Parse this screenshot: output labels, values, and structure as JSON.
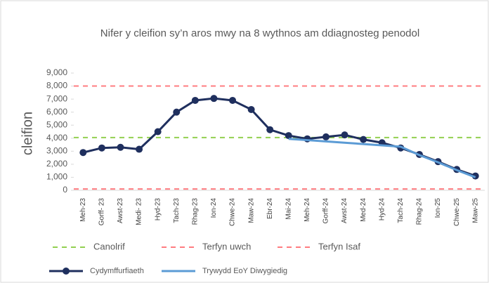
{
  "chart_data": {
    "type": "line",
    "title": "Nifer y cleifion sy’n aros mwy na 8 wythnos am ddiagnosteg penodol",
    "y_label": "cleifion",
    "categories": [
      "Meh-23",
      "Gorff- 23",
      "Awst-23",
      "Medi- 23",
      "Hyd-23",
      "Tach-23",
      "Rhag-23",
      "Ion-24",
      "Chwe-24",
      "Maw-24",
      "Ebr-24",
      "Mai-24",
      "Meh-24",
      "Gorff-24",
      "Awst-24",
      "Med-24",
      "Hyd-24",
      "Tach-24",
      "Rhag-24",
      "Ion-25",
      "Chwe-25",
      "Maw-25"
    ],
    "series": [
      {
        "name": "Cydymffurfiaeth",
        "color": "#1f2f5e",
        "markers": true,
        "values": [
          2900,
          3250,
          3300,
          3150,
          4500,
          6000,
          6900,
          7050,
          6900,
          6200,
          4650,
          4200,
          3950,
          4100,
          4250,
          3900,
          3650,
          3250,
          2750,
          2200,
          1600,
          1100
        ]
      },
      {
        "name": "Trywydd EoY Diwygiedig",
        "color": "#5b9bd5",
        "markers": false,
        "values": [
          null,
          null,
          null,
          null,
          null,
          null,
          null,
          null,
          null,
          null,
          null,
          3950,
          3850,
          3750,
          3650,
          3550,
          3450,
          3350,
          2700,
          2150,
          1550,
          1000
        ]
      }
    ],
    "reference_lines": [
      {
        "name": "Canolrif",
        "color": "#92d050",
        "value": 4050
      },
      {
        "name": "Terfyn uwch",
        "color": "#ff7c80",
        "value": 8000
      },
      {
        "name": "Terfyn Isaf",
        "color": "#ff7c80",
        "value": 100
      }
    ],
    "ylim": [
      0,
      9000
    ],
    "yticks": [
      0,
      {
        "value": 1000,
        "label": "1,000"
      },
      {
        "value": 2000,
        "label": "2,000"
      },
      {
        "value": 3000,
        "label": "3,000"
      },
      {
        "value": 4000,
        "label": "4,000"
      },
      {
        "value": 5000,
        "label": "5,000"
      },
      {
        "value": 6000,
        "label": "6,000"
      },
      {
        "value": 7000,
        "label": "7,000"
      },
      {
        "value": 8000,
        "label": "8,000"
      },
      {
        "value": 9000,
        "label": "9,000"
      }
    ]
  }
}
